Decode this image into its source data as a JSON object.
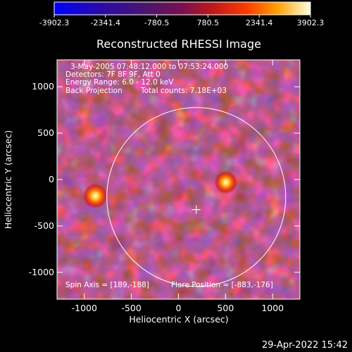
{
  "colorbar": {
    "ticks": [
      "-3902.3",
      "-2341.4",
      "-780.5",
      "780.5",
      "2341.4",
      "3902.3"
    ],
    "min": -3902.3,
    "max": 3902.3
  },
  "chart_data": {
    "type": "heatmap",
    "title": "Reconstructed RHESSI Image",
    "xlabel": "Heliocentric X (arcsec)",
    "ylabel": "Heliocentric Y (arcsec)",
    "xlim": [
      -1290,
      1290
    ],
    "ylim": [
      -1290,
      1290
    ],
    "xticks": [
      -1000,
      -500,
      0,
      500,
      1000
    ],
    "yticks": [
      -1000,
      -500,
      0,
      500,
      1000
    ],
    "annotations": {
      "time_range": "3-May-2005 07:48:12.000 to 07:53:24.000",
      "detectors": "Detectors: 7F 8F 9F, Att 0",
      "energy": "Energy Range: 6.0 - 12.0 keV",
      "method": "Back Projection",
      "counts": "Total counts: 7.18E+03",
      "spin_axis": "Spin Axis = [189,-188]",
      "flare_position": "Flare Position = [-883,-176]"
    },
    "spin_axis": [
      189,
      -188
    ],
    "sources": [
      {
        "x": -883,
        "y": -176,
        "intensity": 3902.3
      },
      {
        "x": 503,
        "y": -30,
        "intensity": 3200
      }
    ],
    "solar_disk": {
      "center": [
        189,
        -188
      ],
      "radius": 950
    }
  },
  "footer": {
    "timestamp": "29-Apr-2022 15:42"
  },
  "colors": {
    "background": "#000000",
    "text": "#ffffff"
  }
}
